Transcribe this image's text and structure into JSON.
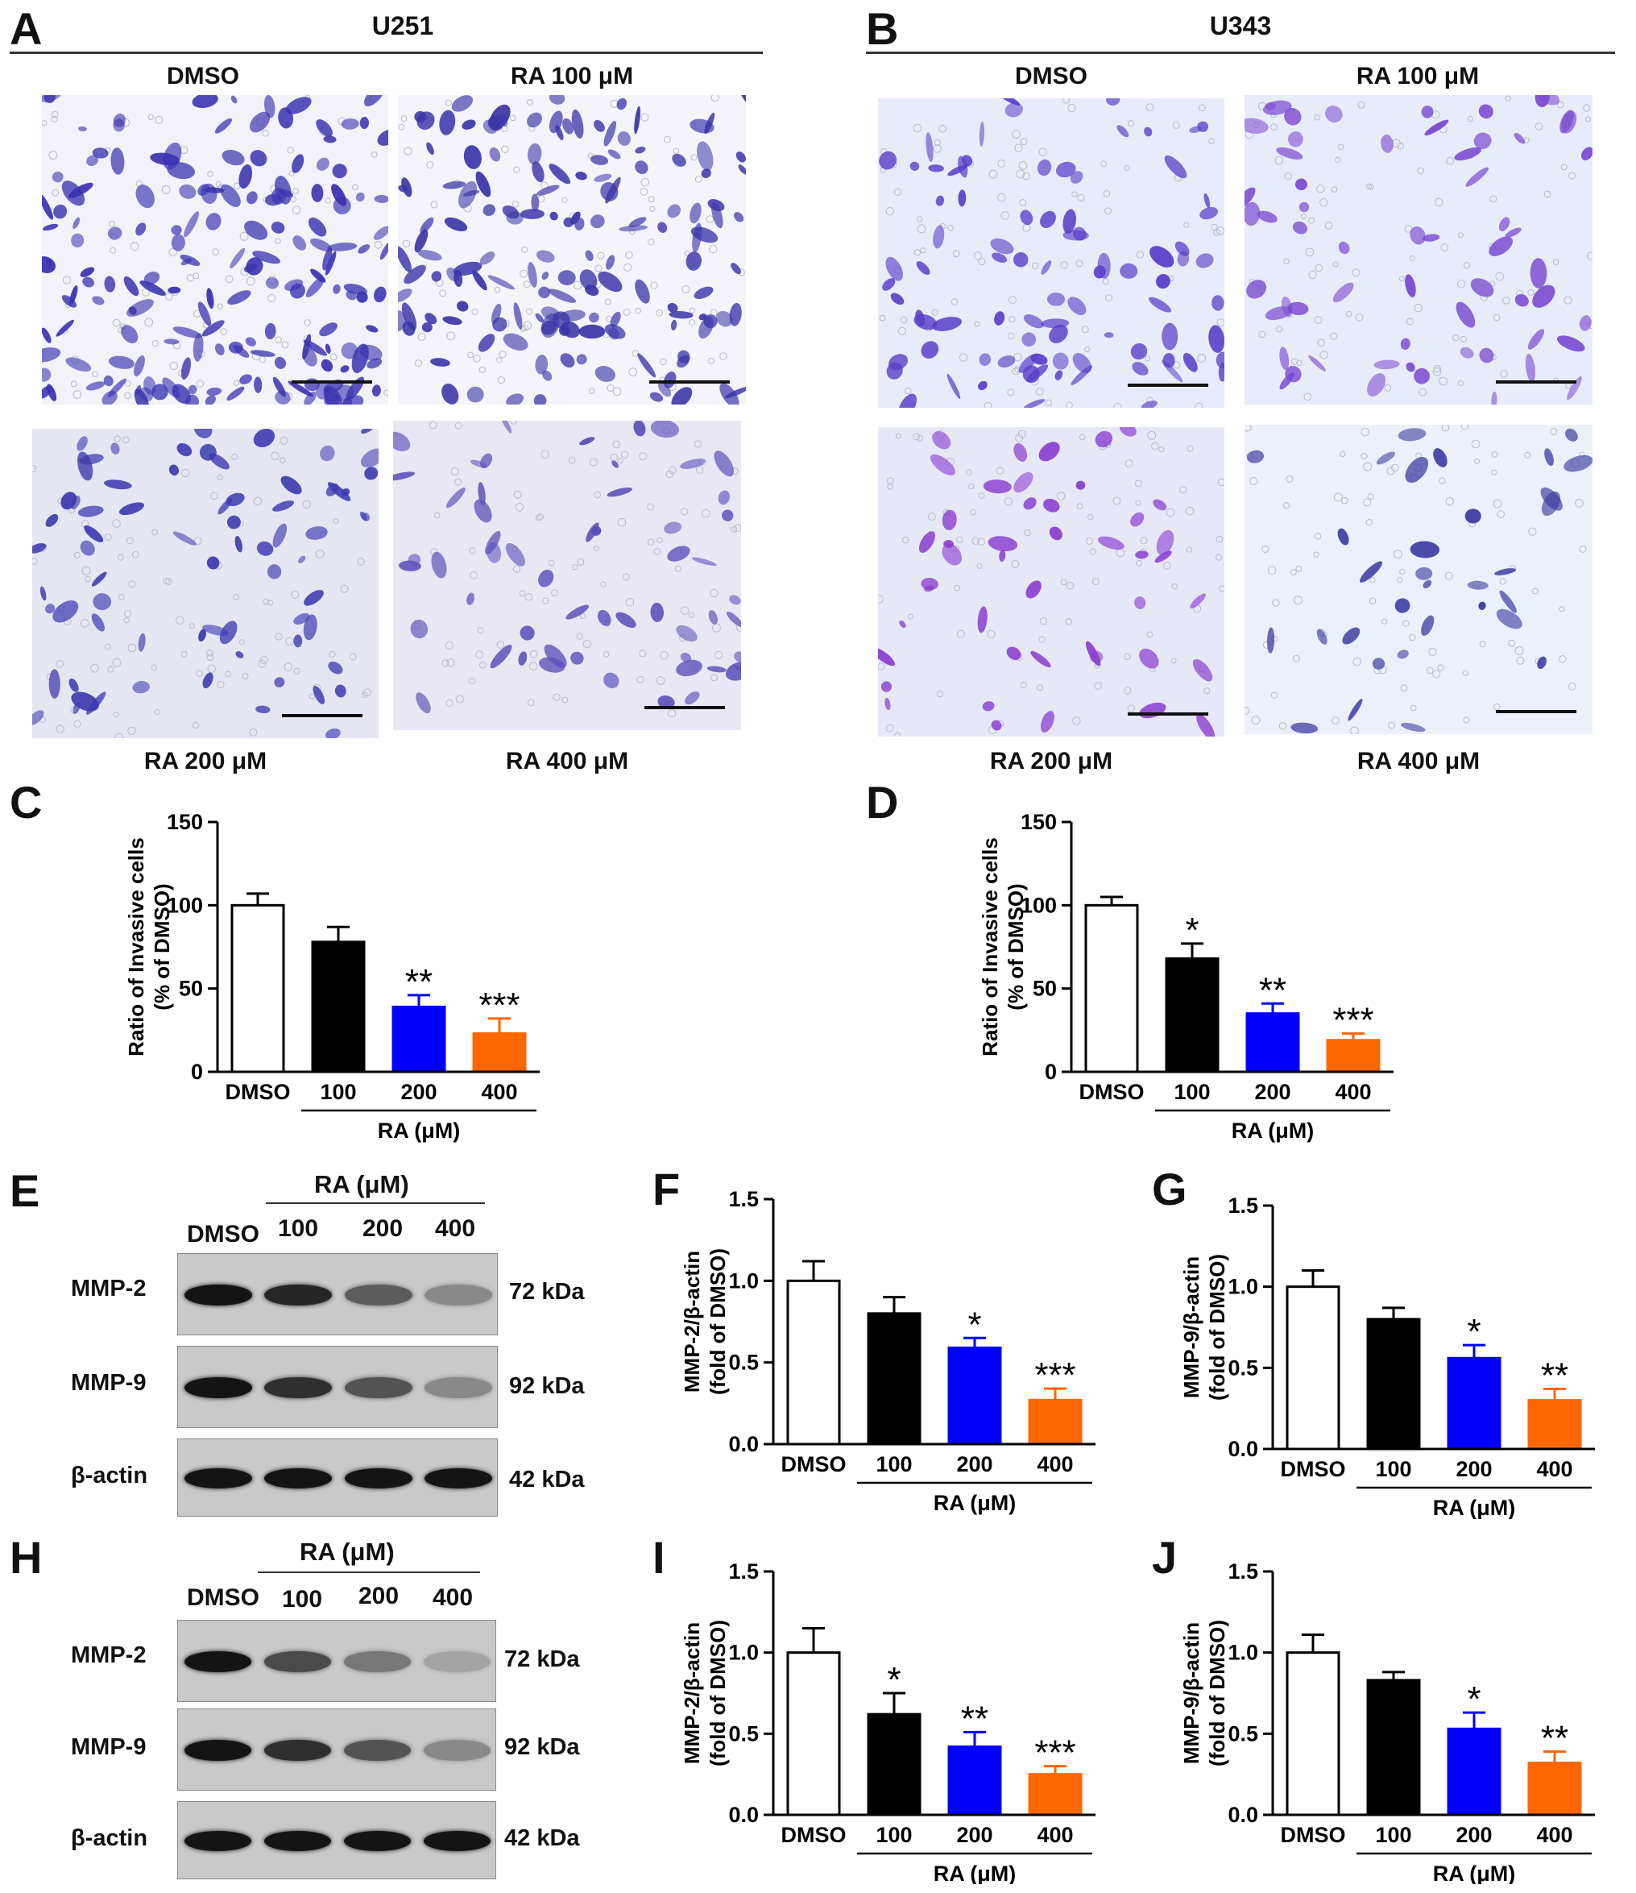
{
  "panels": {
    "A": {
      "letter": "A",
      "cell_line": "U251",
      "images": [
        "DMSO",
        "RA 100 μM",
        "RA 200 μM",
        "RA 400 μM"
      ]
    },
    "B": {
      "letter": "B",
      "cell_line": "U343",
      "images": [
        "DMSO",
        "RA 100 μM",
        "RA 200 μM",
        "RA 400 μM"
      ]
    },
    "E": {
      "letter": "E",
      "header": "RA (μM)",
      "lanes": [
        "DMSO",
        "100",
        "200",
        "400"
      ],
      "proteins": [
        "MMP-2",
        "MMP-9",
        "β-actin"
      ],
      "sizes": [
        "72 kDa",
        "92 kDa",
        "42 kDa"
      ],
      "band_intensity": [
        [
          1.0,
          0.9,
          0.6,
          0.35
        ],
        [
          1.0,
          0.85,
          0.65,
          0.35
        ],
        [
          1.0,
          1.0,
          1.0,
          1.0
        ]
      ]
    },
    "H": {
      "letter": "H",
      "header": "RA (μM)",
      "lanes": [
        "DMSO",
        "100",
        "200",
        "400"
      ],
      "proteins": [
        "MMP-2",
        "MMP-9",
        "β-actin"
      ],
      "sizes": [
        "72 kDa",
        "92 kDa",
        "42 kDa"
      ],
      "band_intensity": [
        [
          1.0,
          0.7,
          0.45,
          0.2
        ],
        [
          1.0,
          0.85,
          0.65,
          0.35
        ],
        [
          1.0,
          1.0,
          1.0,
          1.0
        ]
      ]
    }
  },
  "bar_colors": [
    "#ffffff",
    "#000000",
    "#0000ff",
    "#ff6600"
  ],
  "chart_data": [
    {
      "panel": "C",
      "type": "bar",
      "ylabel": [
        "Ratio of Invasive cells",
        "(% of DMSO)"
      ],
      "categories": [
        "DMSO",
        "100",
        "200",
        "400"
      ],
      "group_label": "RA (μM)",
      "values": [
        100,
        78,
        39,
        23
      ],
      "errors": [
        7,
        9,
        7,
        9
      ],
      "significance": [
        "",
        "",
        "**",
        "***"
      ],
      "ylim": [
        0,
        150
      ],
      "yticks": [
        "0",
        "50",
        "100",
        "150"
      ],
      "ytick_values": [
        0,
        50,
        100,
        150
      ]
    },
    {
      "panel": "D",
      "type": "bar",
      "ylabel": [
        "Ratio of Invasive cells",
        "(% of DMSO)"
      ],
      "categories": [
        "DMSO",
        "100",
        "200",
        "400"
      ],
      "group_label": "RA (μM)",
      "values": [
        100,
        68,
        35,
        19
      ],
      "errors": [
        5,
        9,
        6,
        4
      ],
      "significance": [
        "",
        "*",
        "**",
        "***"
      ],
      "ylim": [
        0,
        150
      ],
      "yticks": [
        "0",
        "50",
        "100",
        "150"
      ],
      "ytick_values": [
        0,
        50,
        100,
        150
      ]
    },
    {
      "panel": "F",
      "type": "bar",
      "ylabel": [
        "MMP-2/β-actin",
        "(fold of DMSO)"
      ],
      "categories": [
        "DMSO",
        "100",
        "200",
        "400"
      ],
      "group_label": "RA (μM)",
      "values": [
        1.0,
        0.8,
        0.59,
        0.27
      ],
      "errors": [
        0.12,
        0.1,
        0.06,
        0.07
      ],
      "significance": [
        "",
        "",
        "*",
        "***"
      ],
      "ylim": [
        0,
        1.5
      ],
      "yticks": [
        "0.0",
        "0.5",
        "1.0",
        "1.5"
      ],
      "ytick_values": [
        0,
        0.5,
        1.0,
        1.5
      ]
    },
    {
      "panel": "G",
      "type": "bar",
      "ylabel": [
        "MMP-9/β-actin",
        "(fold of DMSO)"
      ],
      "categories": [
        "DMSO",
        "100",
        "200",
        "400"
      ],
      "group_label": "RA (μM)",
      "values": [
        1.0,
        0.8,
        0.56,
        0.3
      ],
      "errors": [
        0.1,
        0.07,
        0.08,
        0.07
      ],
      "significance": [
        "",
        "",
        "*",
        "**"
      ],
      "ylim": [
        0,
        1.5
      ],
      "yticks": [
        "0.0",
        "0.5",
        "1.0",
        "1.5"
      ],
      "ytick_values": [
        0,
        0.5,
        1.0,
        1.5
      ]
    },
    {
      "panel": "I",
      "type": "bar",
      "ylabel": [
        "MMP-2/β-actin",
        "(fold of DMSO)"
      ],
      "categories": [
        "DMSO",
        "100",
        "200",
        "400"
      ],
      "group_label": "RA (μM)",
      "values": [
        1.0,
        0.62,
        0.42,
        0.25
      ],
      "errors": [
        0.15,
        0.13,
        0.09,
        0.05
      ],
      "significance": [
        "",
        "*",
        "**",
        "***"
      ],
      "ylim": [
        0,
        1.5
      ],
      "yticks": [
        "0.0",
        "0.5",
        "1.0",
        "1.5"
      ],
      "ytick_values": [
        0,
        0.5,
        1.0,
        1.5
      ]
    },
    {
      "panel": "J",
      "type": "bar",
      "ylabel": [
        "MMP-9/β-actin",
        "(fold of DMSO)"
      ],
      "categories": [
        "DMSO",
        "100",
        "200",
        "400"
      ],
      "group_label": "RA (μM)",
      "values": [
        1.0,
        0.83,
        0.53,
        0.32
      ],
      "errors": [
        0.11,
        0.05,
        0.1,
        0.07
      ],
      "significance": [
        "",
        "",
        "*",
        "**"
      ],
      "ylim": [
        0,
        1.5
      ],
      "yticks": [
        "0.0",
        "0.5",
        "1.0",
        "1.5"
      ],
      "ytick_values": [
        0,
        0.5,
        1.0,
        1.5
      ]
    }
  ]
}
